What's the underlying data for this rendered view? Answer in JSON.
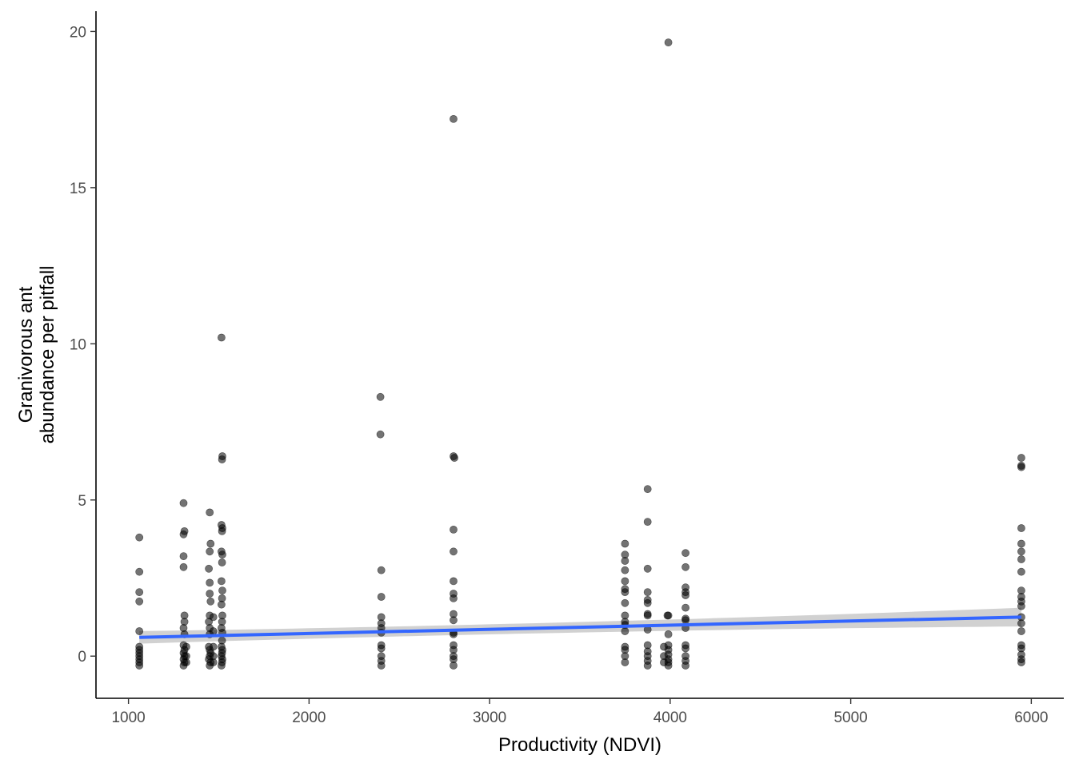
{
  "chart_data": {
    "type": "scatter",
    "title": "",
    "xlabel": "Productivity (NDVI)",
    "ylabel": [
      "Granivorous ant",
      "abundance per pitfall"
    ],
    "xlim": [
      820,
      6180
    ],
    "ylim": [
      -1.35,
      20.65
    ],
    "xticks": [
      1000,
      2000,
      3000,
      4000,
      5000,
      6000
    ],
    "yticks": [
      0,
      5,
      10,
      15,
      20
    ],
    "grid": false,
    "point_color": "#000000",
    "point_opacity": 0.55,
    "trend": {
      "type": "linear",
      "color": "#3366FF",
      "band_color": "#BEBEBE",
      "x": [
        1060,
        5945
      ],
      "y": [
        0.6,
        1.25
      ],
      "band_halfwidth": [
        0.16,
        0.3
      ]
    },
    "points": [
      [
        1060,
        3.8
      ],
      [
        1060,
        2.7
      ],
      [
        1060,
        2.05
      ],
      [
        1060,
        1.75
      ],
      [
        1060,
        0.8
      ],
      [
        1060,
        0.3
      ],
      [
        1060,
        0.2
      ],
      [
        1060,
        0.1
      ],
      [
        1060,
        0
      ],
      [
        1060,
        -0.1
      ],
      [
        1060,
        -0.2
      ],
      [
        1060,
        -0.3
      ],
      [
        1305,
        4.9
      ],
      [
        1310,
        4.0
      ],
      [
        1305,
        3.9
      ],
      [
        1305,
        3.2
      ],
      [
        1305,
        2.85
      ],
      [
        1310,
        1.3
      ],
      [
        1310,
        1.1
      ],
      [
        1305,
        0.9
      ],
      [
        1310,
        0.7
      ],
      [
        1305,
        0.35
      ],
      [
        1310,
        0.2
      ],
      [
        1305,
        0.1
      ],
      [
        1310,
        0
      ],
      [
        1305,
        -0.1
      ],
      [
        1310,
        -0.2
      ],
      [
        1305,
        -0.3
      ],
      [
        1320,
        0.3
      ],
      [
        1320,
        0
      ],
      [
        1320,
        -0.2
      ],
      [
        1450,
        4.6
      ],
      [
        1455,
        3.6
      ],
      [
        1450,
        3.35
      ],
      [
        1445,
        2.8
      ],
      [
        1450,
        2.35
      ],
      [
        1450,
        2.0
      ],
      [
        1455,
        1.75
      ],
      [
        1450,
        1.3
      ],
      [
        1445,
        1.1
      ],
      [
        1450,
        0.9
      ],
      [
        1450,
        0.7
      ],
      [
        1445,
        0.3
      ],
      [
        1450,
        0.2
      ],
      [
        1455,
        0.1
      ],
      [
        1450,
        0
      ],
      [
        1445,
        -0.1
      ],
      [
        1455,
        -0.2
      ],
      [
        1450,
        -0.3
      ],
      [
        1470,
        1.25
      ],
      [
        1470,
        0.8
      ],
      [
        1470,
        0.3
      ],
      [
        1470,
        0
      ],
      [
        1470,
        -0.2
      ],
      [
        1515,
        10.2
      ],
      [
        1520,
        6.4
      ],
      [
        1518,
        6.3
      ],
      [
        1515,
        4.2
      ],
      [
        1520,
        4.1
      ],
      [
        1518,
        4.0
      ],
      [
        1515,
        3.35
      ],
      [
        1520,
        3.25
      ],
      [
        1518,
        3.0
      ],
      [
        1515,
        2.4
      ],
      [
        1520,
        2.1
      ],
      [
        1518,
        1.85
      ],
      [
        1515,
        1.65
      ],
      [
        1520,
        1.3
      ],
      [
        1518,
        1.1
      ],
      [
        1515,
        0.9
      ],
      [
        1520,
        0.75
      ],
      [
        1518,
        0.5
      ],
      [
        1515,
        0.3
      ],
      [
        1520,
        0.2
      ],
      [
        1518,
        0.1
      ],
      [
        1515,
        0
      ],
      [
        1520,
        -0.1
      ],
      [
        1518,
        -0.2
      ],
      [
        1515,
        -0.3
      ],
      [
        2395,
        8.3
      ],
      [
        2395,
        7.1
      ],
      [
        2400,
        2.75
      ],
      [
        2400,
        1.9
      ],
      [
        2400,
        1.25
      ],
      [
        2400,
        1.05
      ],
      [
        2400,
        0.9
      ],
      [
        2400,
        0.75
      ],
      [
        2400,
        0.35
      ],
      [
        2400,
        0.25
      ],
      [
        2400,
        0
      ],
      [
        2400,
        -0.15
      ],
      [
        2400,
        -0.3
      ],
      [
        2800,
        17.2
      ],
      [
        2800,
        6.4
      ],
      [
        2805,
        6.35
      ],
      [
        2800,
        4.05
      ],
      [
        2800,
        3.35
      ],
      [
        2800,
        2.4
      ],
      [
        2800,
        2.0
      ],
      [
        2800,
        1.85
      ],
      [
        2800,
        1.35
      ],
      [
        2800,
        1.15
      ],
      [
        2800,
        0.75
      ],
      [
        2800,
        0.7
      ],
      [
        2800,
        0.35
      ],
      [
        2800,
        0.2
      ],
      [
        2800,
        0
      ],
      [
        2800,
        -0.1
      ],
      [
        2800,
        -0.3
      ],
      [
        3750,
        3.6
      ],
      [
        3750,
        3.25
      ],
      [
        3750,
        3.05
      ],
      [
        3750,
        2.75
      ],
      [
        3750,
        2.4
      ],
      [
        3750,
        2.15
      ],
      [
        3750,
        2.05
      ],
      [
        3750,
        1.7
      ],
      [
        3750,
        1.3
      ],
      [
        3750,
        1.1
      ],
      [
        3750,
        1.0
      ],
      [
        3750,
        0.8
      ],
      [
        3750,
        0.3
      ],
      [
        3750,
        0.2
      ],
      [
        3750,
        0
      ],
      [
        3750,
        -0.2
      ],
      [
        3875,
        5.35
      ],
      [
        3875,
        4.3
      ],
      [
        3875,
        2.8
      ],
      [
        3875,
        2.05
      ],
      [
        3875,
        1.8
      ],
      [
        3875,
        1.7
      ],
      [
        3875,
        1.35
      ],
      [
        3875,
        1.3
      ],
      [
        3875,
        0.85
      ],
      [
        3875,
        0.35
      ],
      [
        3875,
        0.15
      ],
      [
        3875,
        0
      ],
      [
        3875,
        -0.15
      ],
      [
        3875,
        -0.3
      ],
      [
        3990,
        19.65
      ],
      [
        3990,
        1.3
      ],
      [
        3985,
        1.3
      ],
      [
        3990,
        0.7
      ],
      [
        3990,
        0.35
      ],
      [
        3990,
        0.2
      ],
      [
        3990,
        0.05
      ],
      [
        3990,
        -0.1
      ],
      [
        3990,
        -0.2
      ],
      [
        3990,
        -0.3
      ],
      [
        3965,
        0.3
      ],
      [
        3965,
        0
      ],
      [
        3965,
        -0.2
      ],
      [
        4085,
        3.3
      ],
      [
        4085,
        2.85
      ],
      [
        4085,
        2.2
      ],
      [
        4085,
        2.05
      ],
      [
        4085,
        1.95
      ],
      [
        4085,
        1.55
      ],
      [
        4085,
        1.2
      ],
      [
        4085,
        1.15
      ],
      [
        4085,
        0.9
      ],
      [
        4085,
        0.35
      ],
      [
        4085,
        0.25
      ],
      [
        4085,
        0
      ],
      [
        4085,
        -0.15
      ],
      [
        4085,
        -0.3
      ],
      [
        5945,
        6.35
      ],
      [
        5945,
        6.1
      ],
      [
        5945,
        6.05
      ],
      [
        5945,
        4.1
      ],
      [
        5945,
        3.6
      ],
      [
        5945,
        3.35
      ],
      [
        5945,
        3.1
      ],
      [
        5945,
        2.7
      ],
      [
        5945,
        2.1
      ],
      [
        5945,
        1.9
      ],
      [
        5945,
        1.75
      ],
      [
        5945,
        1.6
      ],
      [
        5945,
        1.25
      ],
      [
        5945,
        1.05
      ],
      [
        5945,
        0.8
      ],
      [
        5945,
        0.35
      ],
      [
        5945,
        0.25
      ],
      [
        5945,
        0.05
      ],
      [
        5945,
        -0.1
      ],
      [
        5945,
        -0.2
      ]
    ]
  }
}
